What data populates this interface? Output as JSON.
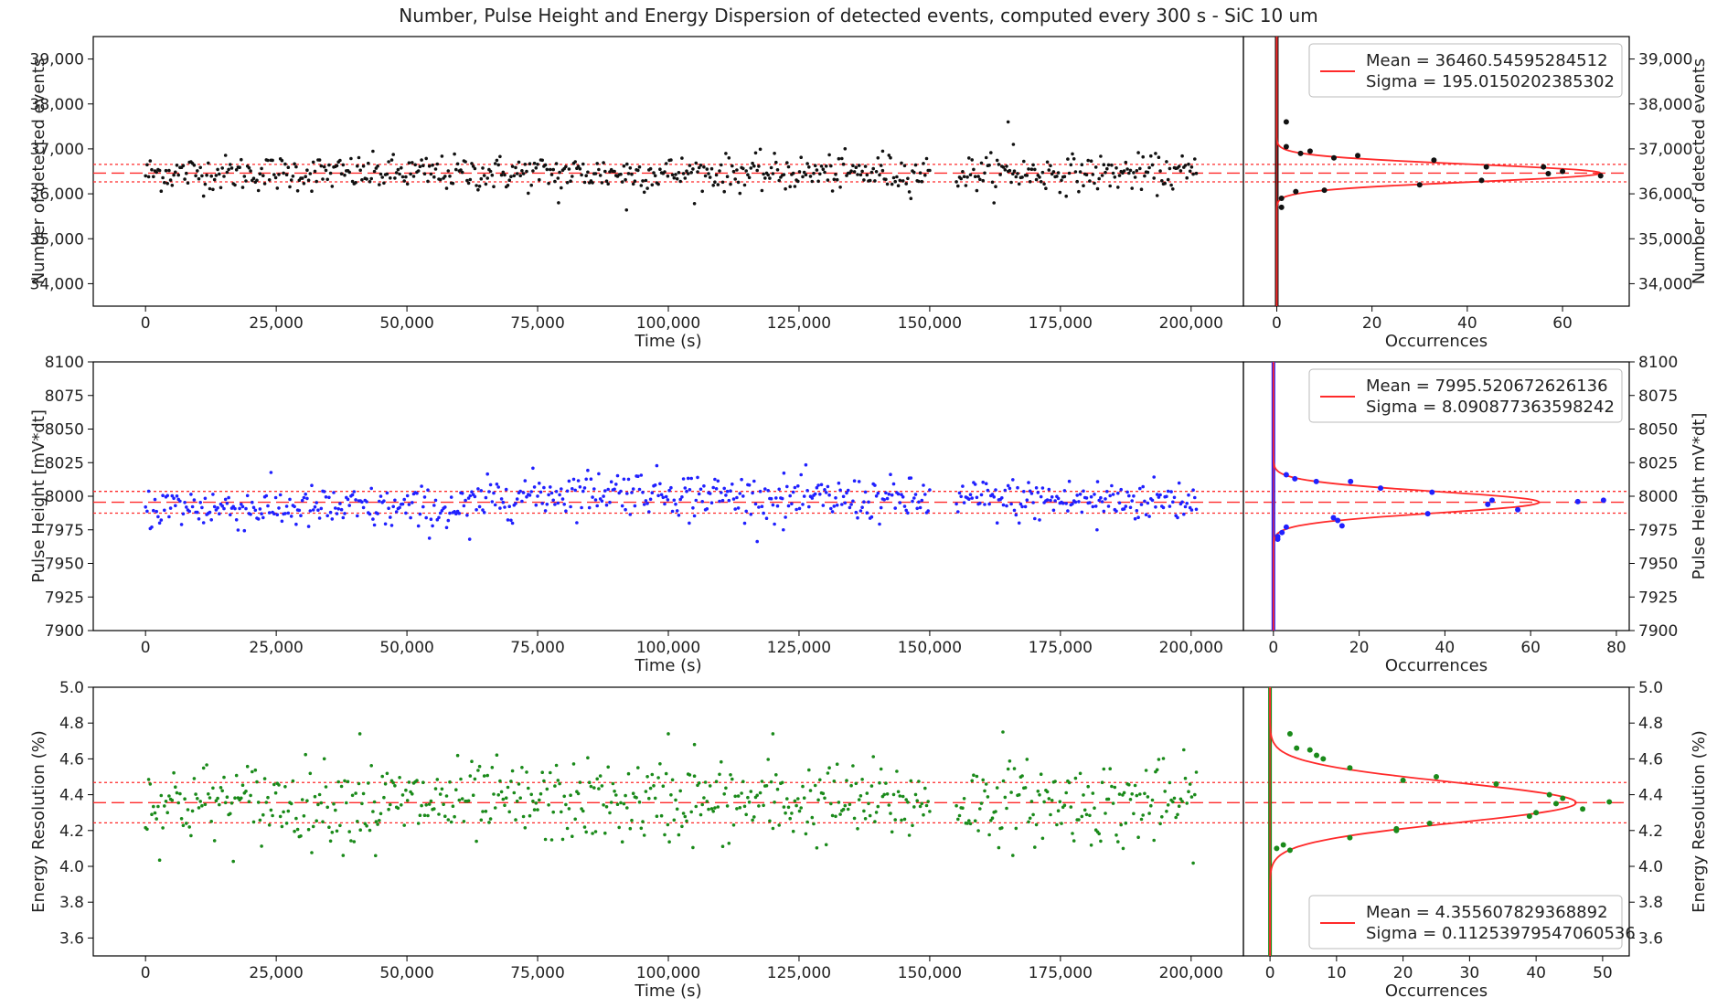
{
  "figure": {
    "title": "Number, Pulse Height and Energy Dispersion of detected events, computed every 300 s - SiC 10 um"
  },
  "colors": {
    "fit_line": "#ff2a2a",
    "panel1_points": "#111111",
    "panel2_points": "#2020ff",
    "panel3_points": "#1a8a1a"
  },
  "chart_data": [
    {
      "type": "scatter",
      "xlabel": "Time (s)",
      "ylabel": "Number of detected events",
      "xlim": [
        -10000,
        210000
      ],
      "ylim": [
        33500,
        39500
      ],
      "x_ticks": [
        0,
        25000,
        50000,
        75000,
        100000,
        125000,
        150000,
        175000,
        200000
      ],
      "x_tick_labels": [
        "0",
        "25,000",
        "50,000",
        "75,000",
        "100,000",
        "125,000",
        "150,000",
        "175,000",
        "200,000"
      ],
      "y_ticks": [
        34000,
        35000,
        36000,
        37000,
        38000,
        39000
      ],
      "y_tick_labels": [
        "34,000",
        "35,000",
        "36,000",
        "37,000",
        "38,000",
        "39,000"
      ],
      "time_step": 300,
      "time_end": 201000,
      "gaps": [
        [
          150000,
          155000
        ]
      ],
      "mean": 36460.54595284512,
      "sigma": 195.0150202385302,
      "outliers": [
        [
          92000,
          35640
        ],
        [
          79000,
          35800
        ],
        [
          165000,
          37600
        ],
        [
          166000,
          37100
        ],
        [
          141000,
          36950
        ]
      ],
      "histogram": {
        "xlabel": "Occurrences",
        "xlim": [
          -7,
          74
        ],
        "x_ticks": [
          0,
          20,
          40,
          60
        ],
        "x_tick_labels": [
          "0",
          "20",
          "40",
          "60"
        ],
        "peak": 68,
        "points": [
          [
            68,
            36400
          ],
          [
            60,
            36500
          ],
          [
            57,
            36450
          ],
          [
            56,
            36600
          ],
          [
            44,
            36600
          ],
          [
            43,
            36300
          ],
          [
            33,
            36750
          ],
          [
            30,
            36200
          ],
          [
            17,
            36850
          ],
          [
            12,
            36800
          ],
          [
            10,
            36080
          ],
          [
            5,
            36900
          ],
          [
            4,
            36050
          ],
          [
            7,
            36950
          ],
          [
            2,
            37050
          ],
          [
            2,
            37600
          ],
          [
            1,
            35900
          ],
          [
            1,
            35700
          ]
        ],
        "legend_mean": "Mean = 36460.54595284512",
        "legend_sigma": "Sigma = 195.0150202385302",
        "legend_position": "top-right",
        "right_ylabel": "Number of detected events"
      }
    },
    {
      "type": "scatter",
      "xlabel": "Time (s)",
      "ylabel": "Pulse Height [mV*dt]",
      "xlim": [
        -10000,
        210000
      ],
      "ylim": [
        7900,
        8100
      ],
      "x_ticks": [
        0,
        25000,
        50000,
        75000,
        100000,
        125000,
        150000,
        175000,
        200000
      ],
      "x_tick_labels": [
        "0",
        "25,000",
        "50,000",
        "75,000",
        "100,000",
        "125,000",
        "150,000",
        "175,000",
        "200,000"
      ],
      "y_ticks": [
        7900,
        7925,
        7950,
        7975,
        8000,
        8025,
        8050,
        8075,
        8100
      ],
      "y_tick_labels": [
        "7900",
        "7925",
        "7950",
        "7975",
        "8000",
        "8025",
        "8050",
        "8075",
        "8100"
      ],
      "time_step": 300,
      "time_end": 201000,
      "gaps": [
        [
          150000,
          155000
        ]
      ],
      "mean": 7995.520672626136,
      "sigma": 8.090877363598242,
      "trend": [
        [
          0,
          7992
        ],
        [
          60000,
          7990
        ],
        [
          68000,
          8000
        ],
        [
          90000,
          8005
        ],
        [
          105000,
          8002
        ],
        [
          120000,
          7998
        ],
        [
          150000,
          7997
        ],
        [
          200000,
          7997
        ]
      ],
      "outliers": [
        [
          62000,
          7968
        ],
        [
          122000,
          7975
        ],
        [
          182000,
          7975
        ],
        [
          104000,
          7980
        ]
      ],
      "histogram": {
        "xlabel": "Occurrences",
        "xlim": [
          -7,
          83
        ],
        "x_ticks": [
          0,
          20,
          40,
          60,
          80
        ],
        "x_tick_labels": [
          "0",
          "20",
          "40",
          "60",
          "80"
        ],
        "peak": 62,
        "points": [
          [
            77,
            7997
          ],
          [
            71,
            7996
          ],
          [
            57,
            7990
          ],
          [
            51,
            7997
          ],
          [
            50,
            7994
          ],
          [
            37,
            8003
          ],
          [
            36,
            7987
          ],
          [
            25,
            8006
          ],
          [
            18,
            8011
          ],
          [
            15,
            7982
          ],
          [
            16,
            7978
          ],
          [
            14,
            7984
          ],
          [
            10,
            8011
          ],
          [
            5,
            8013
          ],
          [
            3,
            8016
          ],
          [
            3,
            7977
          ],
          [
            2,
            7973
          ],
          [
            1,
            7970
          ],
          [
            1,
            7968
          ]
        ],
        "legend_mean": "Mean = 7995.520672626136",
        "legend_sigma": "Sigma = 8.090877363598242",
        "legend_position": "top-right",
        "right_ylabel": "Pulse Height mV*dt]"
      }
    },
    {
      "type": "scatter",
      "xlabel": "Time (s)",
      "ylabel": "Energy Resolution (%)",
      "xlim": [
        -10000,
        210000
      ],
      "ylim": [
        3.5,
        5.0
      ],
      "x_ticks": [
        0,
        25000,
        50000,
        75000,
        100000,
        125000,
        150000,
        175000,
        200000
      ],
      "x_tick_labels": [
        "0",
        "25,000",
        "50,000",
        "75,000",
        "100,000",
        "125,000",
        "150,000",
        "175,000",
        "200,000"
      ],
      "y_ticks": [
        3.6,
        3.8,
        4.0,
        4.2,
        4.4,
        4.6,
        4.8,
        5.0
      ],
      "y_tick_labels": [
        "3.6",
        "3.8",
        "4.0",
        "4.2",
        "4.4",
        "4.6",
        "4.8",
        "5.0"
      ],
      "time_step": 300,
      "time_end": 201000,
      "gaps": [
        [
          150000,
          155000
        ]
      ],
      "mean": 4.355607829368892,
      "sigma": 0.11253979547060536,
      "outliers": [
        [
          41000,
          4.74
        ],
        [
          100000,
          4.74
        ],
        [
          120000,
          4.74
        ],
        [
          164000,
          4.75
        ],
        [
          44000,
          4.06
        ],
        [
          187000,
          4.1
        ],
        [
          105000,
          4.68
        ]
      ],
      "histogram": {
        "xlabel": "Occurrences",
        "xlim": [
          -4,
          54
        ],
        "x_ticks": [
          0,
          10,
          20,
          30,
          40,
          50
        ],
        "x_tick_labels": [
          "0",
          "10",
          "20",
          "30",
          "40",
          "50"
        ],
        "peak": 46,
        "points": [
          [
            51,
            4.36
          ],
          [
            47,
            4.32
          ],
          [
            44,
            4.38
          ],
          [
            43,
            4.35
          ],
          [
            42,
            4.4
          ],
          [
            40,
            4.3
          ],
          [
            39,
            4.28
          ],
          [
            34,
            4.46
          ],
          [
            25,
            4.5
          ],
          [
            24,
            4.24
          ],
          [
            20,
            4.48
          ],
          [
            19,
            4.2
          ],
          [
            19,
            4.21
          ],
          [
            12,
            4.55
          ],
          [
            12,
            4.16
          ],
          [
            8,
            4.6
          ],
          [
            7,
            4.62
          ],
          [
            6,
            4.65
          ],
          [
            4,
            4.66
          ],
          [
            3,
            4.09
          ],
          [
            3,
            4.74
          ],
          [
            2,
            4.12
          ],
          [
            1,
            4.1
          ]
        ],
        "legend_mean": "Mean = 4.355607829368892",
        "legend_sigma": "Sigma = 0.11253979547060536",
        "legend_position": "bottom-right",
        "right_ylabel": "Energy Resolution (%)"
      }
    }
  ]
}
